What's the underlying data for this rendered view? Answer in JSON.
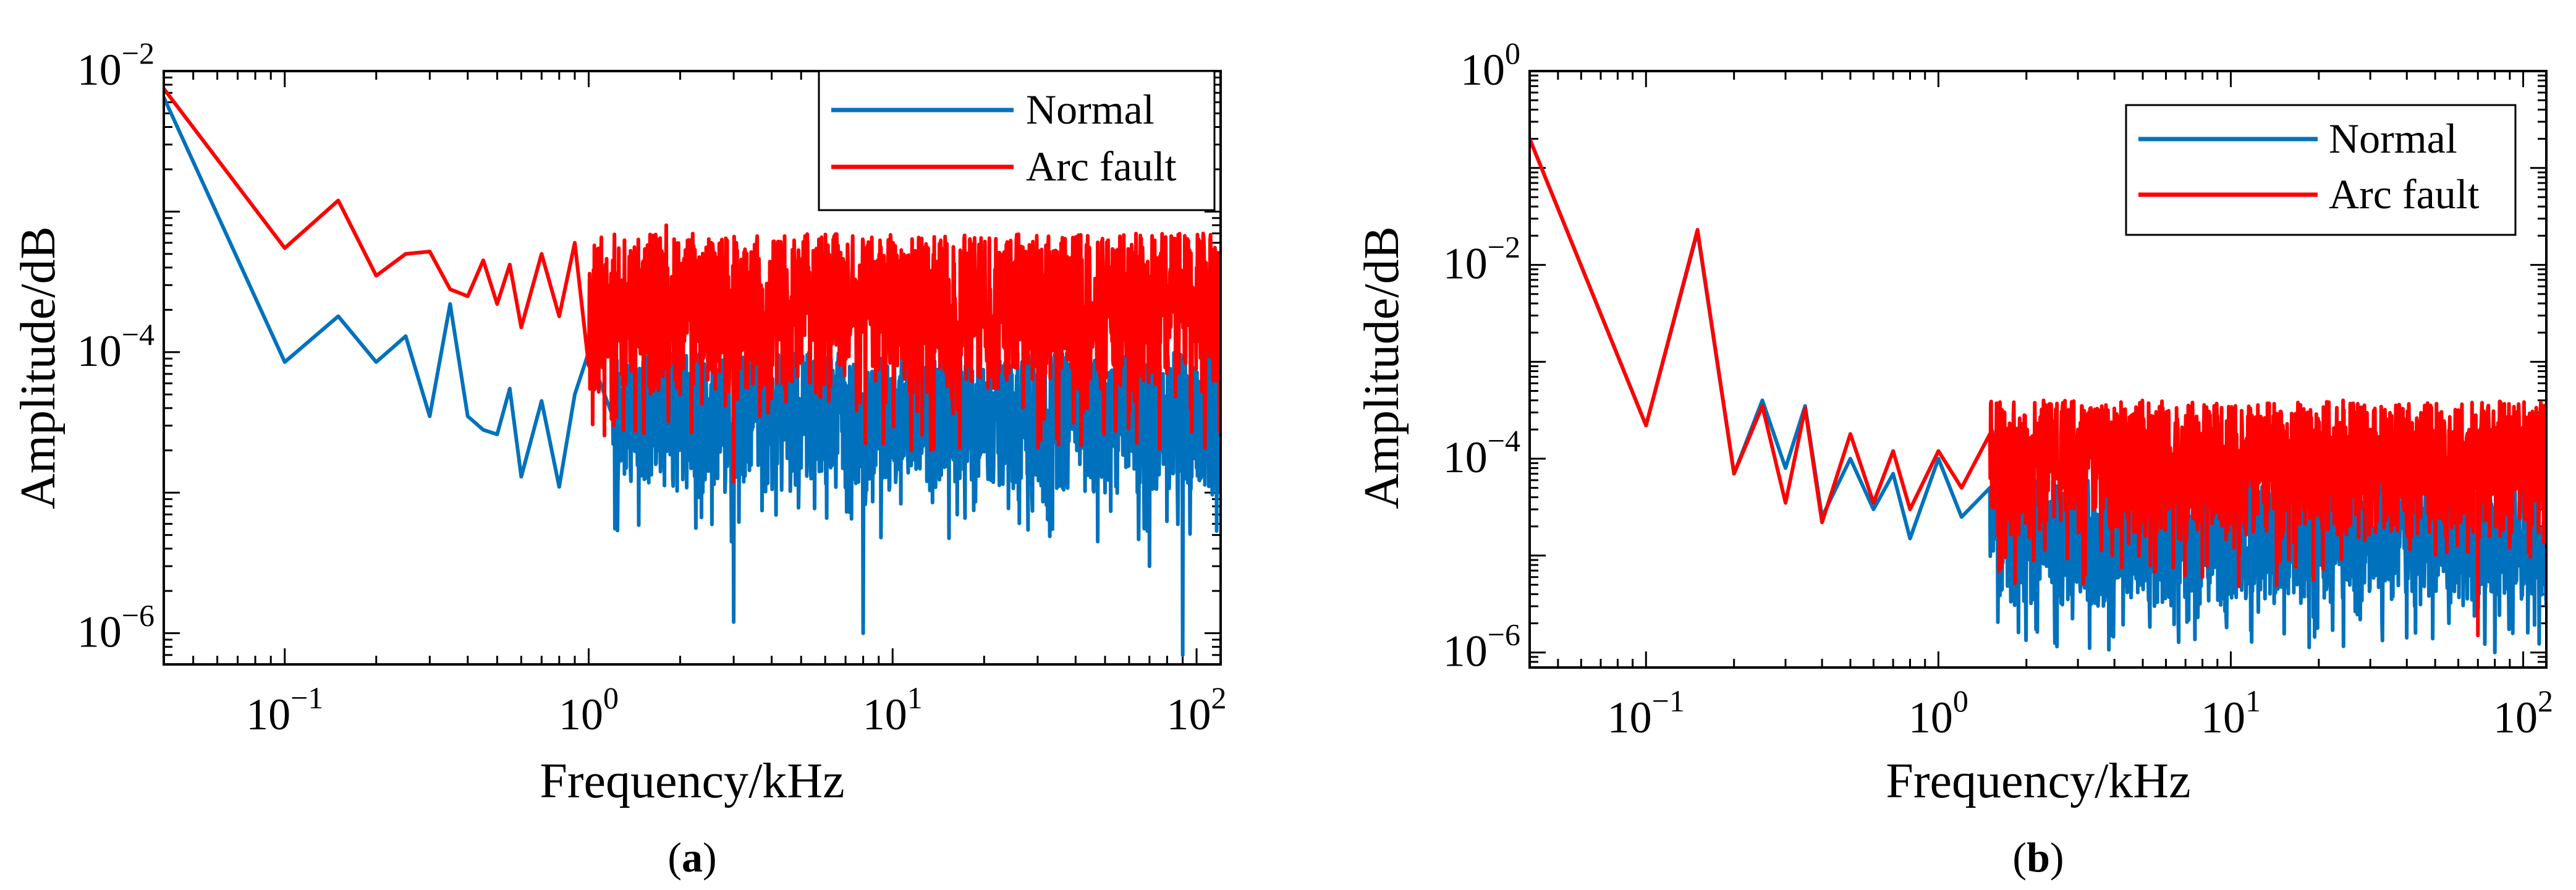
{
  "figure": {
    "panel_a_caption_letter": "a",
    "panel_b_caption_letter": "b"
  },
  "colors": {
    "normal": "#0072BD",
    "arc_fault": "#FF0000"
  },
  "chart_data": [
    {
      "panel": "a",
      "type": "line",
      "title": "",
      "xlabel": "Frequency/kHz",
      "ylabel": "Amplitude/dB",
      "xscale": "log",
      "yscale": "log",
      "xlim": [
        0.04,
        120
      ],
      "ylim": [
        6e-07,
        0.01
      ],
      "xticks": [
        {
          "value": 0.1,
          "base": "10",
          "exp": "−1"
        },
        {
          "value": 1,
          "base": "10",
          "exp": "0"
        },
        {
          "value": 10,
          "base": "10",
          "exp": "1"
        },
        {
          "value": 100,
          "base": "10",
          "exp": "2"
        }
      ],
      "yticks": [
        {
          "value": 1e-06,
          "base": "10",
          "exp": "−6"
        },
        {
          "value": 0.0001,
          "base": "10",
          "exp": "−4"
        },
        {
          "value": 0.01,
          "base": "10",
          "exp": "−2"
        }
      ],
      "legend_position": "top-right",
      "series": [
        {
          "name": "Normal",
          "color": "#0072BD",
          "points": [
            [
              0.04,
              0.0065
            ],
            [
              0.1,
              8.5e-05
            ],
            [
              0.15,
              0.00018
            ],
            [
              0.2,
              8.5e-05
            ],
            [
              0.25,
              0.00013
            ],
            [
              0.3,
              3.5e-05
            ],
            [
              0.35,
              0.00022
            ],
            [
              0.4,
              3.5e-05
            ],
            [
              0.45,
              2.8e-05
            ],
            [
              0.5,
              2.6e-05
            ],
            [
              0.55,
              5.5e-05
            ],
            [
              0.6,
              1.3e-05
            ],
            [
              0.7,
              4.5e-05
            ],
            [
              0.8,
              1.1e-05
            ],
            [
              0.9,
              5e-05
            ],
            [
              1.0,
              0.0001
            ],
            [
              1.2,
              3.5e-05
            ],
            [
              1.5,
              1.8e-05
            ],
            [
              2.0,
              4e-05
            ],
            [
              3.0,
              1.2e-06
            ],
            [
              4.0,
              3e-05
            ],
            [
              5.0,
              1.5e-05
            ],
            [
              8.0,
              1e-06
            ],
            [
              10.0,
              4e-05
            ],
            [
              20.0,
              2e-05
            ],
            [
              30.0,
              1.5e-05
            ],
            [
              50.0,
              1e-05
            ],
            [
              70.0,
              3e-06
            ],
            [
              90.0,
              7e-07
            ],
            [
              100.0,
              1.5e-05
            ],
            [
              120.0,
              1e-05
            ]
          ],
          "band": {
            "x_start": 1.2,
            "lower": 1e-05,
            "upper": 0.0001
          }
        },
        {
          "name": "Arc fault",
          "color": "#FF0000",
          "points": [
            [
              0.04,
              0.0075
            ],
            [
              0.1,
              0.00055
            ],
            [
              0.15,
              0.0012
            ],
            [
              0.2,
              0.00035
            ],
            [
              0.25,
              0.0005
            ],
            [
              0.3,
              0.00052
            ],
            [
              0.35,
              0.00028
            ],
            [
              0.4,
              0.00025
            ],
            [
              0.45,
              0.00045
            ],
            [
              0.5,
              0.00022
            ],
            [
              0.55,
              0.00042
            ],
            [
              0.6,
              0.00015
            ],
            [
              0.7,
              0.0005
            ],
            [
              0.8,
              0.00018
            ],
            [
              0.9,
              0.0006
            ],
            [
              1.0,
              8e-05
            ],
            [
              1.2,
              0.00045
            ],
            [
              1.5,
              0.00022
            ],
            [
              1.8,
              0.0008
            ],
            [
              2.0,
              5e-05
            ],
            [
              2.5,
              0.0004
            ],
            [
              3.0,
              1.2e-05
            ],
            [
              5.0,
              0.0003
            ],
            [
              10.0,
              0.0004
            ],
            [
              20.0,
              0.00015
            ],
            [
              30.0,
              0.0002
            ],
            [
              50.0,
              0.0003
            ],
            [
              70.0,
              0.0002
            ],
            [
              100.0,
              0.0004
            ],
            [
              120.0,
              0.0003
            ]
          ],
          "band": {
            "x_start": 1.0,
            "lower": 5e-05,
            "upper": 0.0007
          }
        }
      ]
    },
    {
      "panel": "b",
      "type": "line",
      "title": "",
      "xlabel": "Frequency/kHz",
      "ylabel": "Amplitude/dB",
      "xscale": "log",
      "yscale": "log",
      "xlim": [
        0.04,
        120
      ],
      "ylim": [
        7e-07,
        1
      ],
      "xticks": [
        {
          "value": 0.1,
          "base": "10",
          "exp": "−1"
        },
        {
          "value": 1,
          "base": "10",
          "exp": "0"
        },
        {
          "value": 10,
          "base": "10",
          "exp": "1"
        },
        {
          "value": 100,
          "base": "10",
          "exp": "2"
        }
      ],
      "yticks": [
        {
          "value": 1e-06,
          "base": "10",
          "exp": "−6"
        },
        {
          "value": 0.0001,
          "base": "10",
          "exp": "−4"
        },
        {
          "value": 0.01,
          "base": "10",
          "exp": "−2"
        },
        {
          "value": 1,
          "base": "10",
          "exp": "0"
        }
      ],
      "legend_position": "top-right",
      "series": [
        {
          "name": "Normal",
          "color": "#0072BD",
          "points": [
            [
              0.04,
              0.2
            ],
            [
              0.1,
              0.00022
            ],
            [
              0.15,
              0.022
            ],
            [
              0.2,
              7e-05
            ],
            [
              0.25,
              0.0004
            ],
            [
              0.3,
              8e-05
            ],
            [
              0.35,
              0.00035
            ],
            [
              0.4,
              2.5e-05
            ],
            [
              0.5,
              0.0001
            ],
            [
              0.6,
              3e-05
            ],
            [
              0.7,
              7e-05
            ],
            [
              0.8,
              1.5e-05
            ],
            [
              1.0,
              0.0001
            ],
            [
              1.2,
              2.5e-05
            ],
            [
              1.5,
              5e-05
            ],
            [
              2.0,
              1.5e-05
            ],
            [
              3.0,
              3e-05
            ],
            [
              5.0,
              1e-05
            ],
            [
              10.0,
              2e-05
            ],
            [
              20.0,
              8e-06
            ],
            [
              30.0,
              1e-05
            ],
            [
              50.0,
              5e-06
            ],
            [
              80.0,
              1e-06
            ],
            [
              100.0,
              5e-06
            ],
            [
              120.0,
              3e-06
            ]
          ],
          "band": {
            "x_start": 1.5,
            "lower": 3e-06,
            "upper": 6e-05
          }
        },
        {
          "name": "Arc fault",
          "color": "#FF0000",
          "points": [
            [
              0.04,
              0.2
            ],
            [
              0.1,
              0.00022
            ],
            [
              0.15,
              0.023
            ],
            [
              0.2,
              7e-05
            ],
            [
              0.25,
              0.00035
            ],
            [
              0.3,
              3.5e-05
            ],
            [
              0.35,
              0.00033
            ],
            [
              0.4,
              2.2e-05
            ],
            [
              0.5,
              0.00018
            ],
            [
              0.6,
              3.5e-05
            ],
            [
              0.7,
              0.00012
            ],
            [
              0.8,
              3e-05
            ],
            [
              1.0,
              0.00012
            ],
            [
              1.2,
              5e-05
            ],
            [
              1.5,
              0.00018
            ],
            [
              2.0,
              4e-05
            ],
            [
              3.0,
              0.0002
            ],
            [
              5.0,
              8e-05
            ],
            [
              8.0,
              6e-06
            ],
            [
              10.0,
              0.0002
            ],
            [
              20.0,
              0.00015
            ],
            [
              30.0,
              0.0002
            ],
            [
              50.0,
              0.00015
            ],
            [
              70.0,
              1.5e-06
            ],
            [
              100.0,
              0.0002
            ],
            [
              120.0,
              0.00015
            ]
          ],
          "band": {
            "x_start": 1.5,
            "lower": 1.5e-05,
            "upper": 0.0004
          }
        }
      ]
    }
  ]
}
